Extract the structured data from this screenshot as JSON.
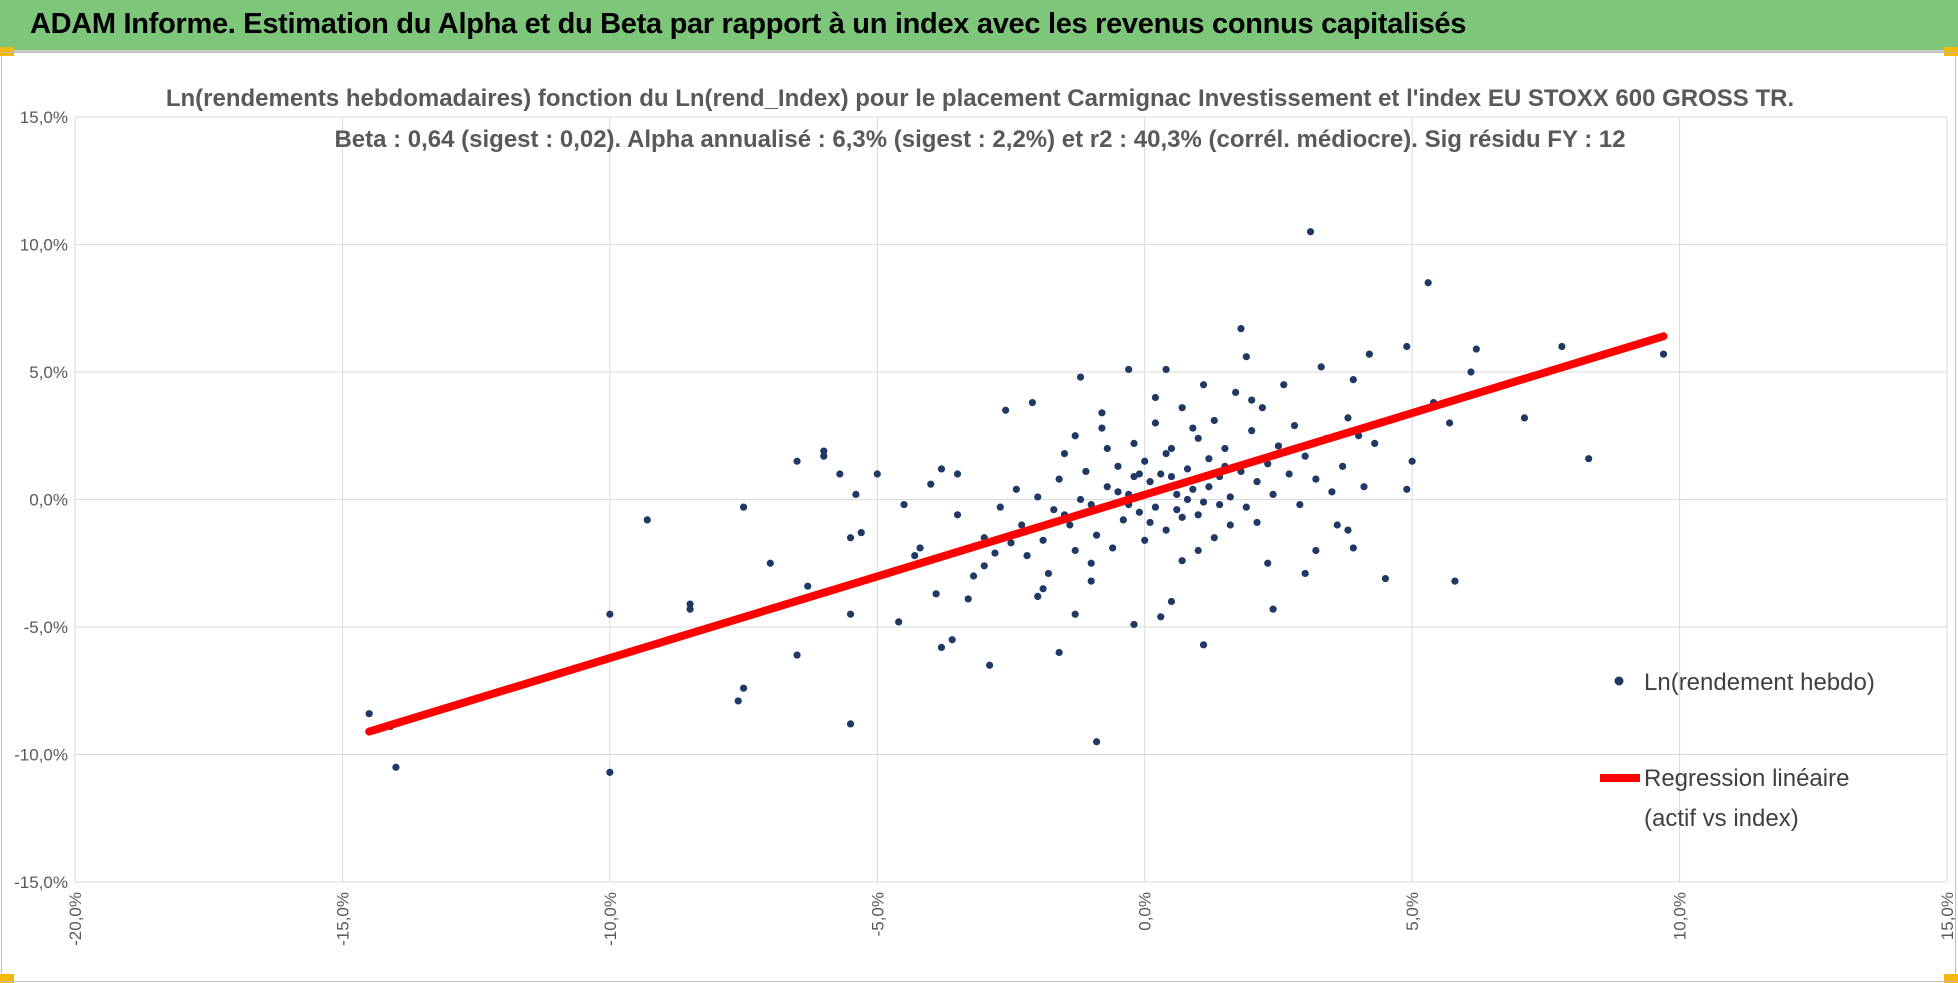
{
  "header": {
    "title": "ADAM Informe. Estimation du Alpha et du Beta par rapport à un index avec les revenus connus capitalisés"
  },
  "colors": {
    "banner": "#7dc67a",
    "points": "#1f3864",
    "regression": "#ff0000",
    "grid": "#d9d9d9",
    "text": "#595959"
  },
  "chart_data": {
    "type": "scatter",
    "title_lines": [
      "Ln(rendements hebdomadaires) fonction du Ln(rend_Index) pour le placement Carmignac Investissement  et l'index EU STOXX 600 GROSS TR.",
      "Beta : 0,64 (sigest : 0,02). Alpha annualisé : 6,3% (sigest : 2,2%) et r2 : 40,3% (corrél. médiocre). Sig résidu FY : 12"
    ],
    "xlim": [
      -20,
      15
    ],
    "ylim": [
      -15,
      15
    ],
    "x_ticks": [
      -20,
      -15,
      -10,
      -5,
      0,
      5,
      10,
      15
    ],
    "y_ticks": [
      15,
      10,
      5,
      0,
      -5,
      -10,
      -15
    ],
    "x_tick_labels": [
      "-20,0%",
      "-15,0%",
      "-10,0%",
      "-5,0%",
      "0,0%",
      "5,0%",
      "10,0%",
      "15,0%"
    ],
    "y_tick_labels": [
      "15,0%",
      "10,0%",
      "5,0%",
      "0,0%",
      "-5,0%",
      "-10,0%",
      "-15,0%"
    ],
    "grid": true,
    "legend": {
      "placement": "right"
    },
    "series": [
      {
        "name": "Ln(rendement hebdo)",
        "kind": "scatter",
        "points": [
          [
            -14.5,
            -8.4
          ],
          [
            -14.1,
            -8.9
          ],
          [
            -14.0,
            -10.5
          ],
          [
            -10.0,
            -4.5
          ],
          [
            -10.0,
            -10.7
          ],
          [
            -9.3,
            -0.8
          ],
          [
            -8.5,
            -4.1
          ],
          [
            -8.5,
            -4.3
          ],
          [
            -7.5,
            -0.3
          ],
          [
            -7.5,
            -7.4
          ],
          [
            -7.6,
            -7.9
          ],
          [
            -7.0,
            -2.5
          ],
          [
            -6.5,
            1.5
          ],
          [
            -6.5,
            -6.1
          ],
          [
            -6.3,
            -3.4
          ],
          [
            -6.0,
            1.9
          ],
          [
            -6.0,
            1.7
          ],
          [
            -5.5,
            -8.8
          ],
          [
            -5.7,
            1.0
          ],
          [
            -5.4,
            0.2
          ],
          [
            -5.5,
            -1.5
          ],
          [
            -5.3,
            -1.3
          ],
          [
            -5.5,
            -4.5
          ],
          [
            -5.0,
            1.0
          ],
          [
            -4.5,
            -0.2
          ],
          [
            -4.6,
            -4.8
          ],
          [
            -4.3,
            -2.2
          ],
          [
            -4.0,
            0.6
          ],
          [
            -3.9,
            -3.7
          ],
          [
            -3.8,
            -5.8
          ],
          [
            -3.6,
            -5.5
          ],
          [
            -3.5,
            1.0
          ],
          [
            -3.8,
            1.2
          ],
          [
            -4.2,
            -1.9
          ],
          [
            -3.3,
            -3.9
          ],
          [
            -3.0,
            -1.5
          ],
          [
            -2.9,
            -6.5
          ],
          [
            -2.6,
            3.5
          ],
          [
            -2.1,
            3.8
          ],
          [
            -1.9,
            -1.6
          ],
          [
            -1.9,
            -3.5
          ],
          [
            -1.6,
            -6.0
          ],
          [
            -1.5,
            1.8
          ],
          [
            -1.3,
            -4.5
          ],
          [
            -1.2,
            4.8
          ],
          [
            -1.0,
            -2.5
          ],
          [
            -0.9,
            -9.5
          ],
          [
            -0.7,
            2.0
          ],
          [
            -0.3,
            5.1
          ],
          [
            0.4,
            5.1
          ],
          [
            -0.2,
            -4.9
          ],
          [
            0.3,
            -4.6
          ],
          [
            0.5,
            -4.0
          ],
          [
            1.0,
            -2.0
          ],
          [
            1.1,
            -5.7
          ],
          [
            1.8,
            6.7
          ],
          [
            1.9,
            5.6
          ],
          [
            2.1,
            -0.9
          ],
          [
            2.3,
            -2.5
          ],
          [
            2.4,
            -4.3
          ],
          [
            3.1,
            10.5
          ],
          [
            3.3,
            5.2
          ],
          [
            3.0,
            -2.9
          ],
          [
            3.2,
            -2.0
          ],
          [
            3.6,
            -1.0
          ],
          [
            3.8,
            -1.2
          ],
          [
            3.9,
            -1.9
          ],
          [
            3.9,
            4.7
          ],
          [
            4.0,
            2.5
          ],
          [
            4.2,
            5.7
          ],
          [
            4.3,
            2.2
          ],
          [
            4.5,
            -3.1
          ],
          [
            4.9,
            6.0
          ],
          [
            4.9,
            0.4
          ],
          [
            5.0,
            1.5
          ],
          [
            5.3,
            8.5
          ],
          [
            5.4,
            3.8
          ],
          [
            5.7,
            3.0
          ],
          [
            5.8,
            -3.2
          ],
          [
            6.1,
            5.0
          ],
          [
            6.2,
            5.9
          ],
          [
            7.1,
            3.2
          ],
          [
            7.8,
            6.0
          ],
          [
            8.3,
            1.6
          ],
          [
            9.7,
            5.7
          ],
          [
            -3.5,
            -0.6
          ],
          [
            -3.0,
            -2.6
          ],
          [
            -2.7,
            -0.3
          ],
          [
            -2.5,
            -1.7
          ],
          [
            -2.4,
            0.4
          ],
          [
            -2.2,
            -2.2
          ],
          [
            -2.0,
            0.1
          ],
          [
            -1.8,
            -2.9
          ],
          [
            -1.7,
            -0.4
          ],
          [
            -1.6,
            0.8
          ],
          [
            -1.4,
            -1.0
          ],
          [
            -1.3,
            -2.0
          ],
          [
            -1.1,
            1.1
          ],
          [
            -1.0,
            -0.2
          ],
          [
            -0.9,
            -1.4
          ],
          [
            -0.8,
            2.8
          ],
          [
            -0.7,
            0.5
          ],
          [
            -0.6,
            -1.9
          ],
          [
            -0.5,
            1.3
          ],
          [
            -0.4,
            -0.8
          ],
          [
            -0.3,
            0.2
          ],
          [
            -0.2,
            2.2
          ],
          [
            -0.1,
            -0.5
          ],
          [
            0.0,
            1.5
          ],
          [
            0.0,
            -1.6
          ],
          [
            0.1,
            0.7
          ],
          [
            0.2,
            -0.3
          ],
          [
            0.2,
            3.0
          ],
          [
            0.3,
            1.0
          ],
          [
            0.4,
            -1.2
          ],
          [
            0.5,
            2.0
          ],
          [
            0.6,
            0.2
          ],
          [
            0.7,
            3.6
          ],
          [
            0.7,
            -0.7
          ],
          [
            0.8,
            1.2
          ],
          [
            0.9,
            0.4
          ],
          [
            1.0,
            2.4
          ],
          [
            1.1,
            -0.1
          ],
          [
            1.2,
            1.6
          ],
          [
            1.3,
            3.1
          ],
          [
            1.3,
            -1.5
          ],
          [
            1.4,
            0.9
          ],
          [
            1.5,
            2.0
          ],
          [
            1.6,
            0.1
          ],
          [
            1.7,
            4.2
          ],
          [
            1.8,
            1.1
          ],
          [
            1.9,
            -0.3
          ],
          [
            2.0,
            2.7
          ],
          [
            2.1,
            0.7
          ],
          [
            2.2,
            3.6
          ],
          [
            2.3,
            1.4
          ],
          [
            2.4,
            0.2
          ],
          [
            2.5,
            2.1
          ],
          [
            2.6,
            4.5
          ],
          [
            2.7,
            1.0
          ],
          [
            2.8,
            2.9
          ],
          [
            2.9,
            -0.2
          ],
          [
            3.0,
            1.7
          ],
          [
            3.2,
            0.8
          ],
          [
            3.4,
            2.4
          ],
          [
            3.5,
            0.3
          ],
          [
            3.7,
            1.3
          ],
          [
            3.8,
            3.2
          ],
          [
            4.1,
            0.5
          ],
          [
            -0.5,
            0.3
          ],
          [
            -0.3,
            -0.2
          ],
          [
            -0.2,
            0.9
          ],
          [
            0.1,
            -0.9
          ],
          [
            0.3,
            0.4
          ],
          [
            0.4,
            1.8
          ],
          [
            0.6,
            -0.4
          ],
          [
            0.8,
            0.0
          ],
          [
            0.9,
            2.8
          ],
          [
            1.0,
            -0.6
          ],
          [
            1.2,
            0.5
          ],
          [
            1.4,
            -0.2
          ],
          [
            1.5,
            1.3
          ],
          [
            0.5,
            0.9
          ],
          [
            0.0,
            0.2
          ],
          [
            -0.1,
            1.0
          ],
          [
            -1.2,
            0.0
          ],
          [
            -1.5,
            -0.6
          ],
          [
            -2.3,
            -1.0
          ],
          [
            -2.8,
            -2.1
          ],
          [
            -3.2,
            -3.0
          ],
          [
            -2.0,
            -3.8
          ],
          [
            -1.0,
            -3.2
          ],
          [
            0.7,
            -2.4
          ],
          [
            1.6,
            -1.0
          ],
          [
            2.0,
            3.9
          ],
          [
            -0.8,
            3.4
          ],
          [
            -1.3,
            2.5
          ],
          [
            0.2,
            4.0
          ],
          [
            1.1,
            4.5
          ]
        ]
      },
      {
        "name": "Regression linéaire",
        "legend_lines": [
          "Regression linéaire",
          "(actif vs index)"
        ],
        "kind": "line",
        "x": [
          -14.5,
          9.7
        ],
        "y": [
          -9.1,
          6.4
        ]
      }
    ]
  }
}
